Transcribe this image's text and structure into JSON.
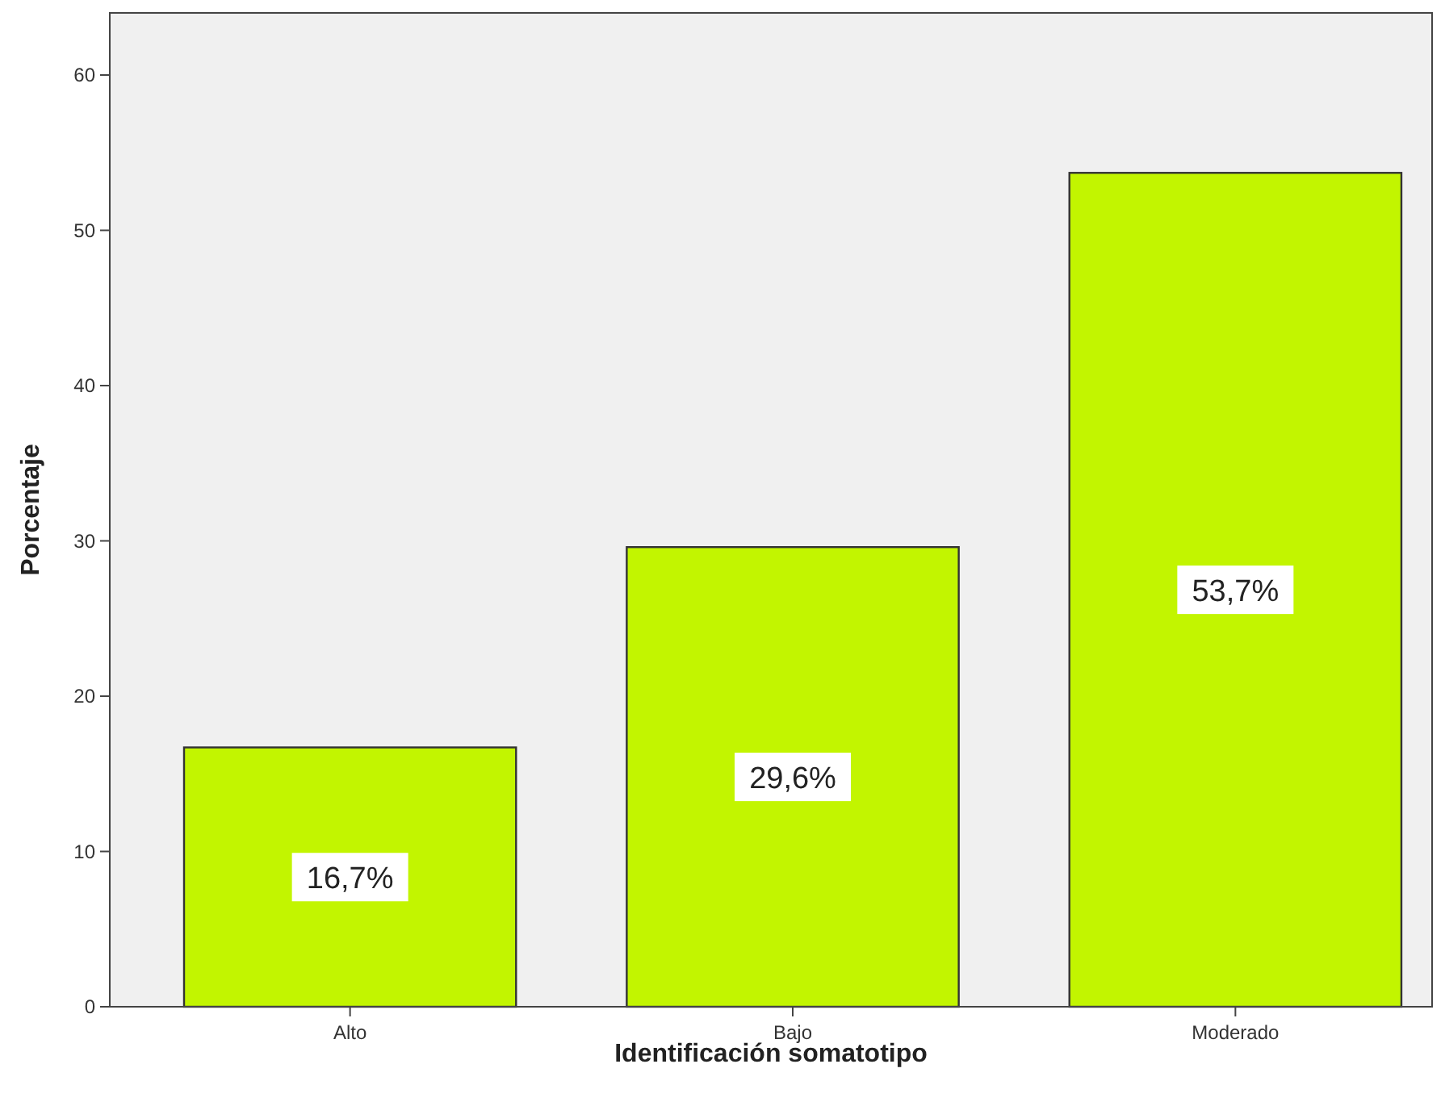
{
  "chart_data": {
    "type": "bar",
    "xlabel": "Identificación somatotipo",
    "ylabel": "Porcentaje",
    "categories": [
      "Alto",
      "Bajo",
      "Moderado"
    ],
    "values": [
      16.7,
      29.6,
      53.7
    ],
    "value_labels": [
      "16,7%",
      "29,6%",
      "53,7%"
    ],
    "color": "#c2f500",
    "ylim": [
      0,
      64
    ],
    "yticks": [
      0,
      10,
      20,
      30,
      40,
      50,
      60
    ],
    "grid": false
  }
}
